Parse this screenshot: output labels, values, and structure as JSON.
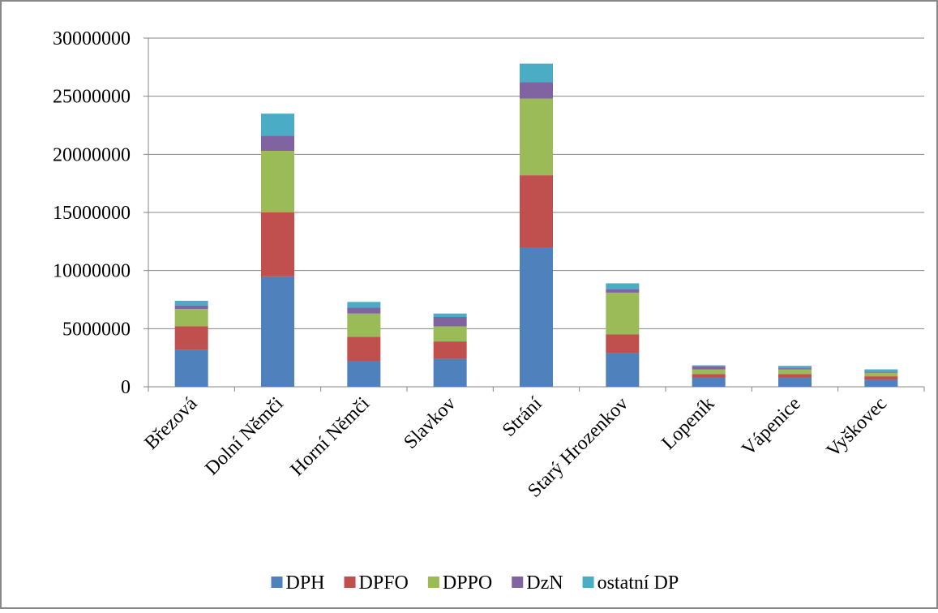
{
  "chart_data": {
    "type": "stacked-bar",
    "categories": [
      "Březová",
      "Dolní Němči",
      "Horní Němči",
      "Slavkov",
      "Strání",
      "Starý Hrozenkov",
      "Lopeník",
      "Vápenice",
      "Vyškovec"
    ],
    "series": [
      {
        "name": "DPH",
        "color": "#4f81bd",
        "values": [
          3200000,
          9500000,
          2200000,
          2400000,
          12000000,
          2900000,
          800000,
          800000,
          600000
        ]
      },
      {
        "name": "DPFO",
        "color": "#c0504d",
        "values": [
          2000000,
          5500000,
          2100000,
          1500000,
          6200000,
          1600000,
          300000,
          300000,
          300000
        ]
      },
      {
        "name": "DPPO",
        "color": "#9bbb59",
        "values": [
          1500000,
          5300000,
          2000000,
          1300000,
          6600000,
          3600000,
          400000,
          400000,
          300000
        ]
      },
      {
        "name": "DzN",
        "color": "#8064a2",
        "values": [
          300000,
          1300000,
          500000,
          800000,
          1400000,
          300000,
          250000,
          100000,
          100000
        ]
      },
      {
        "name": "ostatní DP",
        "color": "#4bacc6",
        "values": [
          400000,
          1900000,
          500000,
          300000,
          1600000,
          500000,
          100000,
          200000,
          200000
        ]
      }
    ],
    "ylim": [
      0,
      30000000
    ],
    "yticks": [
      0,
      5000000,
      10000000,
      15000000,
      20000000,
      25000000,
      30000000
    ],
    "grid": true,
    "legend": "bottom"
  }
}
